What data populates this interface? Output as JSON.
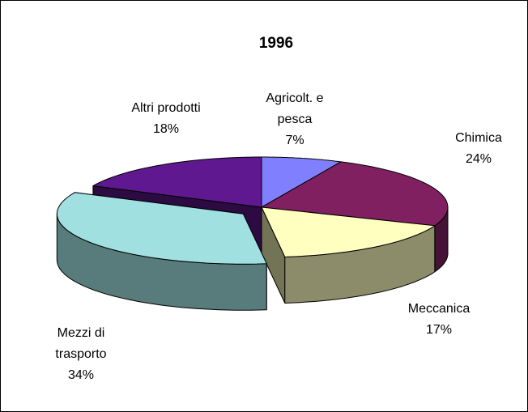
{
  "chart_data": {
    "type": "pie",
    "title": "1996",
    "categories": [
      "Agricolt. e pesca",
      "Chimica",
      "Meccanica",
      "Mezzi di trasporto",
      "Altri prodotti"
    ],
    "values": [
      7,
      24,
      17,
      34,
      18
    ],
    "value_labels": [
      "7%",
      "24%",
      "17%",
      "34%",
      "18%"
    ],
    "colors": [
      "#8080ff",
      "#802060",
      "#ffffc0",
      "#a0e0e0",
      "#601890"
    ],
    "exploded": "Mezzi di trasporto"
  }
}
